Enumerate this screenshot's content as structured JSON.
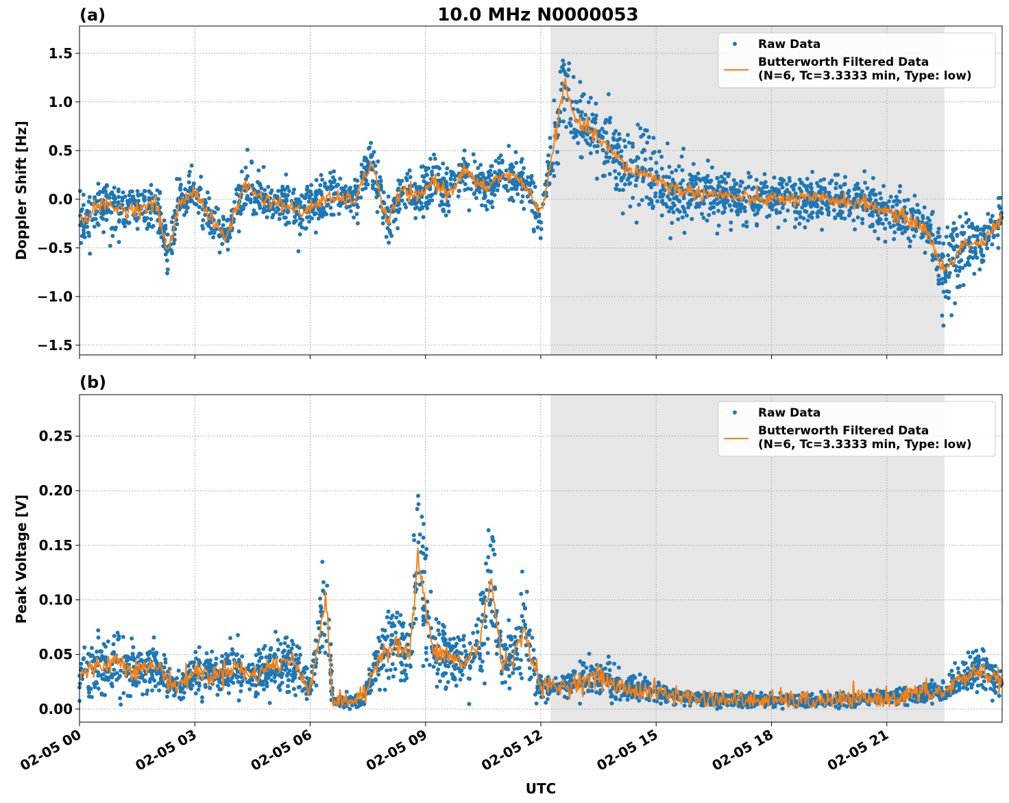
{
  "chart_data": [
    {
      "type": "line",
      "panel_label": "(a)",
      "title": "10.0 MHz N0000053",
      "xlabel": "",
      "ylabel": "Doppler Shift [Hz]",
      "ylim": [
        -1.6,
        1.78
      ],
      "xlim_hours": [
        0,
        24
      ],
      "yticks": [
        -1.5,
        -1.0,
        -0.5,
        0.0,
        0.5,
        1.0,
        1.5
      ],
      "ytick_labels": [
        "−1.5",
        "−1.0",
        "−0.5",
        "0.0",
        "0.5",
        "1.0",
        "1.5"
      ],
      "grid": true,
      "legend_position": "top-right",
      "shaded_region_hours": [
        12.25,
        22.5
      ],
      "shaded_color": "#e6e6e6",
      "series": [
        {
          "name": "Raw Data",
          "style": "scatter",
          "color": "#1f77b4",
          "x": [
            0,
            0.5,
            1.0,
            1.5,
            2.0,
            2.3,
            2.6,
            3.0,
            3.4,
            3.8,
            4.3,
            4.8,
            5.3,
            5.8,
            6.3,
            6.8,
            7.2,
            7.6,
            8.0,
            8.4,
            8.8,
            9.2,
            9.6,
            10.0,
            10.5,
            11.0,
            11.5,
            12.0,
            12.3,
            12.6,
            12.9,
            13.3,
            13.8,
            14.3,
            14.8,
            15.5,
            16.5,
            17.5,
            18.5,
            19.5,
            20.5,
            21.5,
            22.0,
            22.5,
            23.0,
            23.5,
            24.0
          ],
          "y": [
            -0.25,
            -0.05,
            -0.1,
            -0.1,
            -0.05,
            -0.55,
            -0.05,
            0.1,
            -0.2,
            -0.4,
            0.15,
            0.0,
            -0.05,
            -0.15,
            0.0,
            0.0,
            0.0,
            0.4,
            -0.25,
            0.1,
            0.0,
            0.2,
            0.05,
            0.3,
            0.1,
            0.25,
            0.2,
            -0.15,
            0.45,
            1.2,
            0.8,
            0.7,
            0.5,
            0.3,
            0.25,
            0.1,
            0.05,
            0.0,
            0.0,
            0.0,
            -0.05,
            -0.2,
            -0.3,
            -0.75,
            -0.45,
            -0.45,
            -0.2
          ]
        },
        {
          "name": "Butterworth Filtered Data\n(N=6, Tc=3.3333 min, Type: low)",
          "style": "line",
          "color": "#ff7f0e",
          "x": [
            0,
            0.5,
            1.0,
            1.5,
            2.0,
            2.3,
            2.6,
            3.0,
            3.4,
            3.8,
            4.3,
            4.8,
            5.3,
            5.8,
            6.3,
            6.8,
            7.2,
            7.6,
            8.0,
            8.4,
            8.8,
            9.2,
            9.6,
            10.0,
            10.5,
            11.0,
            11.5,
            12.0,
            12.3,
            12.6,
            12.9,
            13.3,
            13.8,
            14.3,
            14.8,
            15.5,
            16.5,
            17.5,
            18.5,
            19.5,
            20.5,
            21.5,
            22.0,
            22.5,
            23.0,
            23.5,
            24.0
          ],
          "y": [
            -0.25,
            -0.05,
            -0.1,
            -0.1,
            -0.05,
            -0.55,
            -0.05,
            0.1,
            -0.2,
            -0.4,
            0.15,
            0.0,
            -0.05,
            -0.15,
            0.0,
            0.0,
            0.0,
            0.4,
            -0.25,
            0.1,
            0.0,
            0.2,
            0.05,
            0.3,
            0.1,
            0.25,
            0.2,
            -0.15,
            0.45,
            1.2,
            0.8,
            0.7,
            0.5,
            0.3,
            0.25,
            0.1,
            0.05,
            0.0,
            0.0,
            0.0,
            -0.05,
            -0.2,
            -0.3,
            -0.75,
            -0.45,
            -0.45,
            -0.2
          ]
        }
      ]
    },
    {
      "type": "line",
      "panel_label": "(b)",
      "title": "",
      "xlabel": "UTC",
      "ylabel": "Peak Voltage [V]",
      "ylim": [
        -0.012,
        0.288
      ],
      "xlim_hours": [
        0,
        24
      ],
      "yticks": [
        0.0,
        0.05,
        0.1,
        0.15,
        0.2,
        0.25
      ],
      "ytick_labels": [
        "0.00",
        "0.05",
        "0.10",
        "0.15",
        "0.20",
        "0.25"
      ],
      "xticks_hours": [
        0,
        3,
        6,
        9,
        12,
        15,
        18,
        21
      ],
      "xtick_labels": [
        "02-05 00",
        "02-05 03",
        "02-05 06",
        "02-05 09",
        "02-05 12",
        "02-05 15",
        "02-05 18",
        "02-05 21"
      ],
      "grid": true,
      "legend_position": "top-right",
      "shaded_region_hours": [
        12.25,
        22.5
      ],
      "shaded_color": "#e6e6e6",
      "series": [
        {
          "name": "Raw Data",
          "style": "scatter",
          "color": "#1f77b4",
          "x": [
            0,
            0.5,
            1.0,
            1.5,
            2.0,
            2.5,
            3.0,
            3.5,
            4.0,
            4.5,
            5.0,
            5.5,
            6.0,
            6.4,
            6.6,
            7.0,
            7.4,
            7.8,
            8.2,
            8.6,
            8.8,
            9.2,
            9.6,
            10.0,
            10.4,
            10.7,
            11.0,
            11.3,
            11.6,
            12.0,
            12.5,
            13.0,
            13.5,
            14.0,
            15.0,
            16.0,
            17.0,
            18.0,
            19.0,
            20.0,
            21.0,
            22.0,
            22.5,
            23.0,
            23.5,
            24.0
          ],
          "y": [
            0.03,
            0.04,
            0.045,
            0.035,
            0.04,
            0.02,
            0.035,
            0.03,
            0.04,
            0.03,
            0.04,
            0.045,
            0.02,
            0.1,
            0.005,
            0.008,
            0.01,
            0.05,
            0.06,
            0.05,
            0.14,
            0.05,
            0.05,
            0.04,
            0.06,
            0.12,
            0.04,
            0.05,
            0.07,
            0.02,
            0.02,
            0.025,
            0.03,
            0.02,
            0.015,
            0.01,
            0.008,
            0.008,
            0.007,
            0.008,
            0.01,
            0.015,
            0.015,
            0.03,
            0.035,
            0.025
          ]
        },
        {
          "name": "Butterworth Filtered Data\n(N=6, Tc=3.3333 min, Type: low)",
          "style": "line",
          "color": "#ff7f0e",
          "x": [
            0,
            0.5,
            1.0,
            1.5,
            2.0,
            2.5,
            3.0,
            3.5,
            4.0,
            4.5,
            5.0,
            5.5,
            6.0,
            6.4,
            6.6,
            7.0,
            7.4,
            7.8,
            8.2,
            8.6,
            8.8,
            9.2,
            9.6,
            10.0,
            10.4,
            10.7,
            11.0,
            11.3,
            11.6,
            12.0,
            12.5,
            13.0,
            13.5,
            14.0,
            15.0,
            16.0,
            17.0,
            18.0,
            19.0,
            20.0,
            21.0,
            22.0,
            22.5,
            23.0,
            23.5,
            24.0
          ],
          "y": [
            0.03,
            0.04,
            0.045,
            0.035,
            0.04,
            0.02,
            0.035,
            0.03,
            0.04,
            0.03,
            0.04,
            0.045,
            0.02,
            0.1,
            0.005,
            0.008,
            0.01,
            0.05,
            0.06,
            0.05,
            0.14,
            0.05,
            0.05,
            0.04,
            0.06,
            0.12,
            0.04,
            0.05,
            0.07,
            0.02,
            0.02,
            0.025,
            0.03,
            0.02,
            0.015,
            0.01,
            0.008,
            0.008,
            0.007,
            0.008,
            0.01,
            0.015,
            0.015,
            0.03,
            0.035,
            0.025
          ]
        }
      ]
    }
  ]
}
